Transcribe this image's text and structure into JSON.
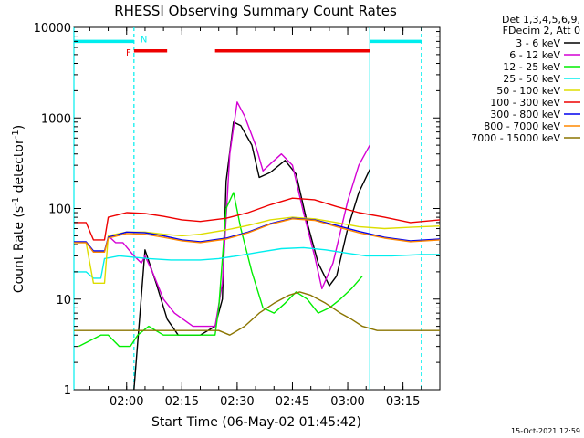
{
  "chart_data": {
    "type": "line",
    "title": "RHESSI Observing Summary Count Rates",
    "xlabel": "Start Time (06-May-02 01:45:42)",
    "ylabel": "Count Rate (s⁻¹ detector⁻¹)",
    "ylabel_main": "Count Rate (s",
    "ylabel_mid": " detector",
    "ylabel_end": ")",
    "ylabel_sup": "-1",
    "timestamp": "15-Oct-2021 12:59",
    "y_scale": "log",
    "ylim": [
      1,
      10000
    ],
    "xlim": [
      "01:45:42",
      "03:25:00"
    ],
    "x_ticks": [
      {
        "t": "02:00",
        "label": "02:00"
      },
      {
        "t": "02:15",
        "label": "02:15"
      },
      {
        "t": "02:30",
        "label": "02:30"
      },
      {
        "t": "02:45",
        "label": "02:45"
      },
      {
        "t": "03:00",
        "label": "03:00"
      },
      {
        "t": "03:15",
        "label": "03:15"
      }
    ],
    "y_ticks": [
      {
        "v": 1,
        "label": "1"
      },
      {
        "v": 10,
        "label": "10"
      },
      {
        "v": 100,
        "label": "100"
      },
      {
        "v": 1000,
        "label": "1000"
      },
      {
        "v": 10000,
        "label": "10000"
      }
    ],
    "legend_header": [
      "Det 1,3,4,5,6,9,",
      "FDecim 2, Att 0"
    ],
    "series": [
      {
        "name": "3 - 6 keV",
        "color": "#000000",
        "points": [
          [
            "02:02",
            1
          ],
          [
            "02:05",
            35
          ],
          [
            "02:08",
            15
          ],
          [
            "02:11",
            6
          ],
          [
            "02:14",
            4
          ],
          [
            "02:20",
            4
          ],
          [
            "02:24",
            5
          ],
          [
            "02:26",
            10
          ],
          [
            "02:27",
            200
          ],
          [
            "02:29",
            900
          ],
          [
            "02:31",
            820
          ],
          [
            "02:34",
            500
          ],
          [
            "02:36",
            220
          ],
          [
            "02:39",
            250
          ],
          [
            "02:43",
            340
          ],
          [
            "02:46",
            240
          ],
          [
            "02:49",
            70
          ],
          [
            "02:52",
            25
          ],
          [
            "02:55",
            14
          ],
          [
            "02:57",
            18
          ],
          [
            "03:00",
            60
          ],
          [
            "03:03",
            150
          ],
          [
            "03:06",
            270
          ]
        ]
      },
      {
        "name": "6 - 12 keV",
        "color": "#d400d4",
        "points": [
          [
            "01:55",
            50
          ],
          [
            "01:57",
            42
          ],
          [
            "01:59",
            42
          ],
          [
            "02:02",
            30
          ],
          [
            "02:04",
            25
          ],
          [
            "02:05",
            30
          ],
          [
            "02:07",
            20
          ],
          [
            "02:10",
            10
          ],
          [
            "02:13",
            7
          ],
          [
            "02:18",
            5
          ],
          [
            "02:24",
            5
          ],
          [
            "02:26",
            15
          ],
          [
            "02:28",
            400
          ],
          [
            "02:30",
            1500
          ],
          [
            "02:32",
            1050
          ],
          [
            "02:35",
            500
          ],
          [
            "02:37",
            260
          ],
          [
            "02:39",
            310
          ],
          [
            "02:42",
            400
          ],
          [
            "02:45",
            300
          ],
          [
            "02:48",
            90
          ],
          [
            "02:51",
            30
          ],
          [
            "02:53",
            13
          ],
          [
            "02:56",
            25
          ],
          [
            "03:00",
            120
          ],
          [
            "03:03",
            300
          ],
          [
            "03:06",
            500
          ]
        ]
      },
      {
        "name": "12 - 25 keV",
        "color": "#00ee00",
        "points": [
          [
            "01:47",
            3
          ],
          [
            "01:53",
            4
          ],
          [
            "01:55",
            4
          ],
          [
            "01:58",
            3
          ],
          [
            "02:01",
            3
          ],
          [
            "02:03",
            4
          ],
          [
            "02:06",
            5
          ],
          [
            "02:10",
            4
          ],
          [
            "02:15",
            4
          ],
          [
            "02:20",
            4
          ],
          [
            "02:24",
            4
          ],
          [
            "02:25",
            8
          ],
          [
            "02:27",
            100
          ],
          [
            "02:29",
            150
          ],
          [
            "02:31",
            60
          ],
          [
            "02:34",
            20
          ],
          [
            "02:37",
            8
          ],
          [
            "02:40",
            7
          ],
          [
            "02:43",
            9
          ],
          [
            "02:46",
            12
          ],
          [
            "02:49",
            10
          ],
          [
            "02:52",
            7
          ],
          [
            "02:55",
            8
          ],
          [
            "02:58",
            10
          ],
          [
            "03:01",
            13
          ],
          [
            "03:04",
            18
          ]
        ]
      },
      {
        "name": "25 - 50 keV",
        "color": "#00eeee",
        "points": [
          [
            "01:45:42",
            20
          ],
          [
            "01:49",
            20
          ],
          [
            "01:51",
            17
          ],
          [
            "01:53",
            17
          ],
          [
            "01:54",
            28
          ],
          [
            "01:58",
            30
          ],
          [
            "02:02",
            29
          ],
          [
            "02:06",
            28
          ],
          [
            "02:12",
            27
          ],
          [
            "02:20",
            27
          ],
          [
            "02:25",
            28
          ],
          [
            "02:30",
            30
          ],
          [
            "02:36",
            33
          ],
          [
            "02:42",
            36
          ],
          [
            "02:48",
            37
          ],
          [
            "02:54",
            35
          ],
          [
            "03:00",
            32
          ],
          [
            "03:05",
            30
          ],
          [
            "03:12",
            30
          ],
          [
            "03:20",
            31
          ],
          [
            "03:25",
            31
          ]
        ]
      },
      {
        "name": "50 - 100 keV",
        "color": "#dddd00",
        "points": [
          [
            "01:45:42",
            42
          ],
          [
            "01:49",
            42
          ],
          [
            "01:51",
            15
          ],
          [
            "01:54",
            15
          ],
          [
            "01:55",
            50
          ],
          [
            "02:00",
            55
          ],
          [
            "02:05",
            55
          ],
          [
            "02:10",
            52
          ],
          [
            "02:15",
            50
          ],
          [
            "02:20",
            52
          ],
          [
            "02:27",
            58
          ],
          [
            "02:33",
            65
          ],
          [
            "02:39",
            75
          ],
          [
            "02:45",
            80
          ],
          [
            "02:51",
            77
          ],
          [
            "02:57",
            70
          ],
          [
            "03:03",
            63
          ],
          [
            "03:10",
            60
          ],
          [
            "03:17",
            62
          ],
          [
            "03:25",
            64
          ]
        ]
      },
      {
        "name": "100 - 300 keV",
        "color": "#ee0000",
        "points": [
          [
            "01:45:42",
            70
          ],
          [
            "01:49",
            70
          ],
          [
            "01:51",
            45
          ],
          [
            "01:54",
            45
          ],
          [
            "01:55",
            80
          ],
          [
            "02:00",
            90
          ],
          [
            "02:05",
            88
          ],
          [
            "02:10",
            82
          ],
          [
            "02:15",
            75
          ],
          [
            "02:20",
            72
          ],
          [
            "02:27",
            78
          ],
          [
            "02:33",
            90
          ],
          [
            "02:39",
            110
          ],
          [
            "02:45",
            130
          ],
          [
            "02:51",
            125
          ],
          [
            "02:57",
            105
          ],
          [
            "03:03",
            90
          ],
          [
            "03:10",
            80
          ],
          [
            "03:17",
            70
          ],
          [
            "03:25",
            75
          ]
        ]
      },
      {
        "name": "300 - 800 keV",
        "color": "#0000ee",
        "points": [
          [
            "01:45:42",
            43
          ],
          [
            "01:49",
            43
          ],
          [
            "01:51",
            34
          ],
          [
            "01:54",
            34
          ],
          [
            "01:55",
            48
          ],
          [
            "02:00",
            55
          ],
          [
            "02:05",
            54
          ],
          [
            "02:10",
            50
          ],
          [
            "02:15",
            45
          ],
          [
            "02:20",
            43
          ],
          [
            "02:27",
            47
          ],
          [
            "02:33",
            55
          ],
          [
            "02:39",
            68
          ],
          [
            "02:45",
            78
          ],
          [
            "02:51",
            75
          ],
          [
            "02:57",
            65
          ],
          [
            "03:03",
            56
          ],
          [
            "03:10",
            48
          ],
          [
            "03:17",
            44
          ],
          [
            "03:25",
            46
          ]
        ]
      },
      {
        "name": "800 - 7000 keV",
        "color": "#ff8800",
        "points": [
          [
            "01:45:42",
            42
          ],
          [
            "01:49",
            42
          ],
          [
            "01:51",
            33
          ],
          [
            "01:54",
            33
          ],
          [
            "01:55",
            47
          ],
          [
            "02:00",
            53
          ],
          [
            "02:05",
            52
          ],
          [
            "02:10",
            48
          ],
          [
            "02:15",
            44
          ],
          [
            "02:20",
            42
          ],
          [
            "02:27",
            46
          ],
          [
            "02:33",
            54
          ],
          [
            "02:39",
            67
          ],
          [
            "02:45",
            77
          ],
          [
            "02:51",
            74
          ],
          [
            "02:57",
            63
          ],
          [
            "03:03",
            54
          ],
          [
            "03:10",
            47
          ],
          [
            "03:17",
            43
          ],
          [
            "03:25",
            45
          ]
        ]
      },
      {
        "name": "7000 - 15000 keV",
        "color": "#8b7500",
        "points": [
          [
            "01:45:42",
            4.5
          ],
          [
            "01:50",
            4.5
          ],
          [
            "01:55",
            4.5
          ],
          [
            "02:00",
            4.5
          ],
          [
            "02:05",
            4.5
          ],
          [
            "02:10",
            4.5
          ],
          [
            "02:15",
            4.5
          ],
          [
            "02:20",
            4.5
          ],
          [
            "02:25",
            4.5
          ],
          [
            "02:28",
            4
          ],
          [
            "02:32",
            5
          ],
          [
            "02:36",
            7
          ],
          [
            "02:40",
            9
          ],
          [
            "02:44",
            11
          ],
          [
            "02:47",
            12
          ],
          [
            "02:50",
            11
          ],
          [
            "02:54",
            9
          ],
          [
            "02:58",
            7
          ],
          [
            "03:01",
            6
          ],
          [
            "03:04",
            5
          ],
          [
            "03:08",
            4.5
          ],
          [
            "03:15",
            4.5
          ],
          [
            "03:25",
            4.5
          ]
        ]
      }
    ],
    "bars": [
      {
        "label": "",
        "color": "#00eeee",
        "y": 7000,
        "from": "01:45:42",
        "to": "02:02"
      },
      {
        "label": "",
        "color": "#00eeee",
        "y": 7000,
        "from": "03:06",
        "to": "03:20"
      },
      {
        "label": "F",
        "color": "#ee0000",
        "y": 5500,
        "from": "02:02",
        "to": "02:11"
      },
      {
        "label": "",
        "color": "#ee0000",
        "y": 5500,
        "from": "02:24",
        "to": "03:06"
      }
    ],
    "markers": [
      {
        "label": "N",
        "color": "#00eeee",
        "t": "02:02",
        "y": 7000
      }
    ],
    "vlines": [
      {
        "t": "01:45:42",
        "color": "#00eeee",
        "style": "solid"
      },
      {
        "t": "02:02",
        "color": "#00eeee",
        "style": "dashed"
      },
      {
        "t": "03:06",
        "color": "#00eeee",
        "style": "solid"
      },
      {
        "t": "03:20",
        "color": "#00eeee",
        "style": "dashed"
      }
    ]
  }
}
